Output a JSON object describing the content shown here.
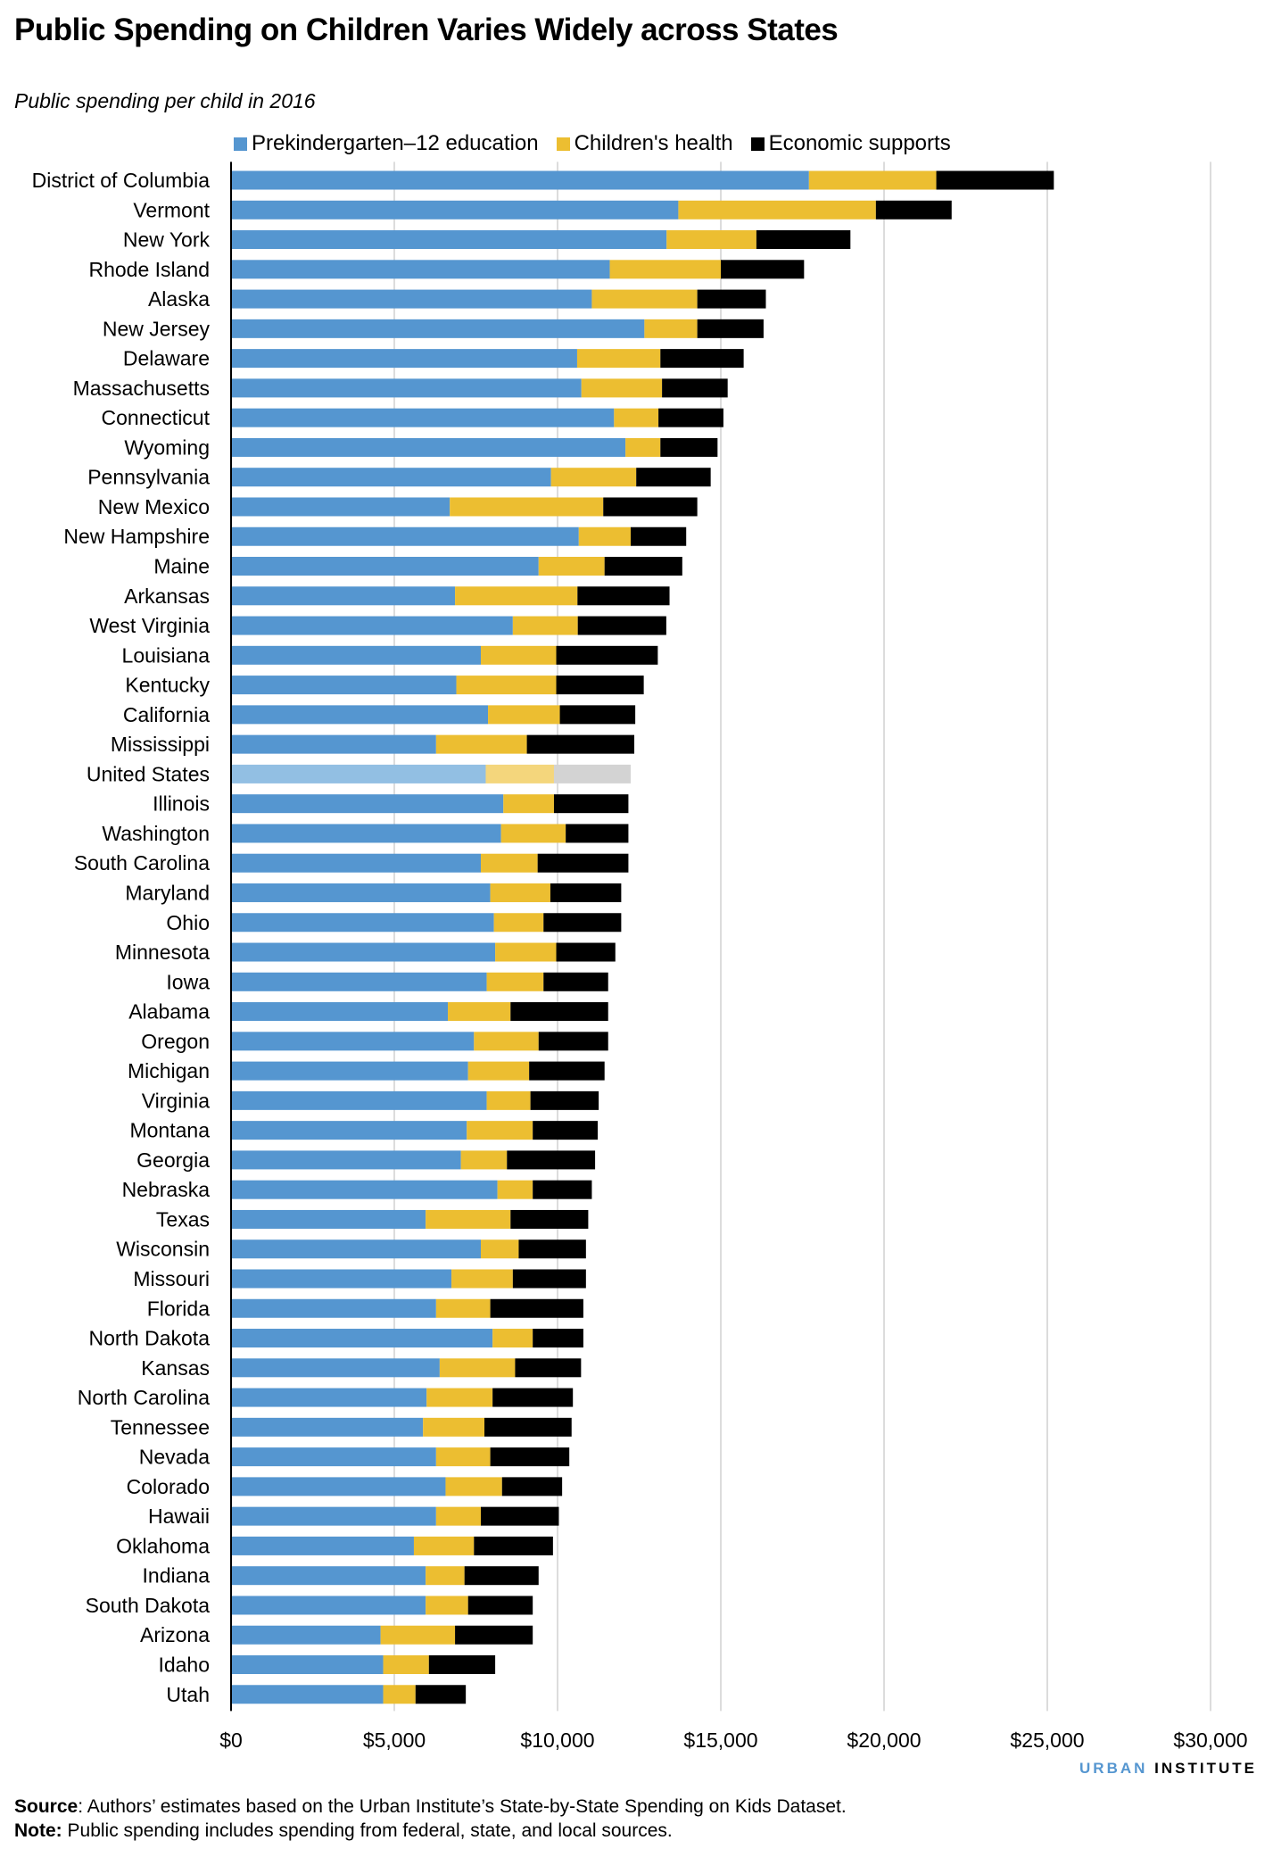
{
  "title": "Public Spending on Children Varies Widely across States",
  "subtitle": "Public spending per child in 2016",
  "brand": {
    "part1": "URBAN",
    "part2": "INSTITUTE"
  },
  "source": {
    "label": "Source",
    "text": ": Authors’ estimates based on the Urban Institute’s State-by-State Spending on Kids Dataset."
  },
  "note": {
    "label": "Note:",
    "text": " Public spending includes spending from federal, state, and local sources."
  },
  "colors": {
    "education": "#5596d0",
    "health": "#ecbe31",
    "economic": "#000000",
    "us_education": "#92bfe3",
    "us_health": "#f4d67c",
    "us_economic": "#d3d3d3",
    "grid": "#dcdcdc"
  },
  "chart_data": {
    "type": "bar",
    "orientation": "horizontal",
    "stacked": true,
    "title": "Public Spending on Children Varies Widely across States",
    "subtitle": "Public spending per child in 2016",
    "xlim": [
      0,
      30000
    ],
    "xticks": [
      "$0",
      "$5,000",
      "$10,000",
      "$15,000",
      "$20,000",
      "$25,000",
      "$30,000"
    ],
    "grid": "vertical",
    "legend_position": "top",
    "highlighted_category": "United States",
    "categories": [
      "District of Columbia",
      "Vermont",
      "New York",
      "Rhode Island",
      "Alaska",
      "New Jersey",
      "Delaware",
      "Massachusetts",
      "Connecticut",
      "Wyoming",
      "Pennsylvania",
      "New Mexico",
      "New Hampshire",
      "Maine",
      "Arkansas",
      "West Virginia",
      "Louisiana",
      "Kentucky",
      "California",
      "Mississippi",
      "United States",
      "Illinois",
      "Washington",
      "South Carolina",
      "Maryland",
      "Ohio",
      "Minnesota",
      "Iowa",
      "Alabama",
      "Oregon",
      "Michigan",
      "Virginia",
      "Montana",
      "Georgia",
      "Nebraska",
      "Texas",
      "Wisconsin",
      "Missouri",
      "Florida",
      "North Dakota",
      "Kansas",
      "North Carolina",
      "Tennessee",
      "Nevada",
      "Colorado",
      "Hawaii",
      "Oklahoma",
      "Indiana",
      "South Dakota",
      "Arizona",
      "Idaho",
      "Utah"
    ],
    "series": [
      {
        "name": "Prekindergarten–12 education",
        "values": [
          17700,
          13700,
          13340,
          11600,
          11050,
          12660,
          10600,
          10730,
          11730,
          12080,
          9800,
          6700,
          10650,
          9420,
          6860,
          8630,
          7650,
          6900,
          7870,
          6280,
          7800,
          8340,
          8270,
          7650,
          7940,
          8050,
          8090,
          7830,
          6640,
          7440,
          7260,
          7830,
          7220,
          7040,
          8160,
          5960,
          7650,
          6750,
          6280,
          8010,
          6390,
          5990,
          5880,
          6280,
          6570,
          6280,
          5600,
          5960,
          5960,
          4580,
          4660,
          4660
        ]
      },
      {
        "name": "Children's health",
        "values": [
          3900,
          6050,
          2750,
          3400,
          3230,
          1620,
          2550,
          2470,
          1360,
          1070,
          2610,
          4700,
          1590,
          2020,
          3750,
          1990,
          2310,
          3060,
          2200,
          2780,
          2090,
          1550,
          1980,
          1740,
          1840,
          1520,
          1870,
          1740,
          1920,
          1980,
          1870,
          1340,
          2020,
          1410,
          1080,
          2600,
          1160,
          1880,
          1660,
          1230,
          2310,
          2020,
          1880,
          1660,
          1730,
          1370,
          1840,
          1190,
          1300,
          2280,
          1400,
          990
        ]
      },
      {
        "name": "Economic supports",
        "values": [
          3600,
          2320,
          2880,
          2550,
          2100,
          2030,
          2550,
          2010,
          1990,
          1750,
          2280,
          2880,
          1700,
          2380,
          2820,
          2710,
          3110,
          2680,
          2310,
          3290,
          2350,
          2280,
          1920,
          2780,
          2170,
          2380,
          1810,
          1980,
          2990,
          2130,
          2310,
          2090,
          1990,
          2700,
          1810,
          2380,
          2060,
          2240,
          2850,
          1550,
          2020,
          2460,
          2670,
          2420,
          1840,
          2390,
          2420,
          2270,
          1980,
          2380,
          2030,
          1540
        ]
      }
    ]
  }
}
